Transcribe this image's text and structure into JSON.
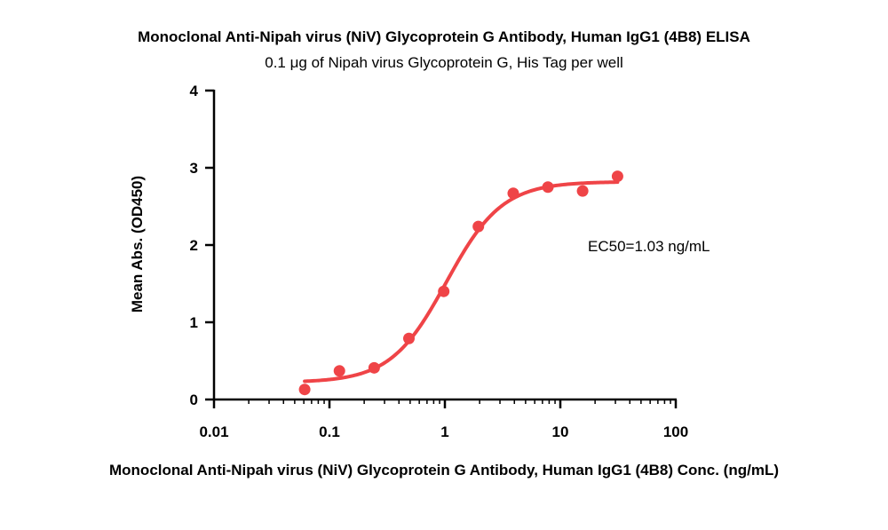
{
  "chart_data": {
    "type": "scatter",
    "title": "Monoclonal Anti-Nipah virus (NiV) Glycoprotein G Antibody, Human IgG1 (4B8) ELISA",
    "subtitle": "0.1 μg of Nipah virus Glycoprotein G, His Tag per well",
    "xlabel": "Monoclonal Anti-Nipah virus (NiV) Glycoprotein G Antibody, Human IgG1 (4B8) Conc. (ng/mL)",
    "ylabel": "Mean Abs. (OD450)",
    "x_scale": "log",
    "xlim": [
      0.01,
      100
    ],
    "ylim": [
      0,
      4
    ],
    "x_ticks": [
      0.01,
      0.1,
      1,
      10,
      100
    ],
    "x_tick_labels": [
      "0.01",
      "0.1",
      "1",
      "10",
      "100"
    ],
    "y_ticks": [
      0,
      1,
      2,
      3,
      4
    ],
    "y_tick_labels": [
      "0",
      "1",
      "2",
      "3",
      "4"
    ],
    "grid": false,
    "color": "#ef4447",
    "series": [
      {
        "x": [
          0.061,
          0.122,
          0.244,
          0.488,
          0.977,
          1.95,
          3.91,
          7.81,
          15.6,
          31.3
        ],
        "y": [
          0.13,
          0.37,
          0.41,
          0.79,
          1.4,
          2.24,
          2.67,
          2.75,
          2.7,
          2.89
        ]
      }
    ],
    "fit_curve": {
      "model": "4PL",
      "bottom": 0.22,
      "top": 2.82,
      "ec50": 1.03,
      "hill": 1.8,
      "x_range": [
        0.061,
        31.3
      ]
    },
    "annotation": "EC50=1.03 ng/mL"
  }
}
